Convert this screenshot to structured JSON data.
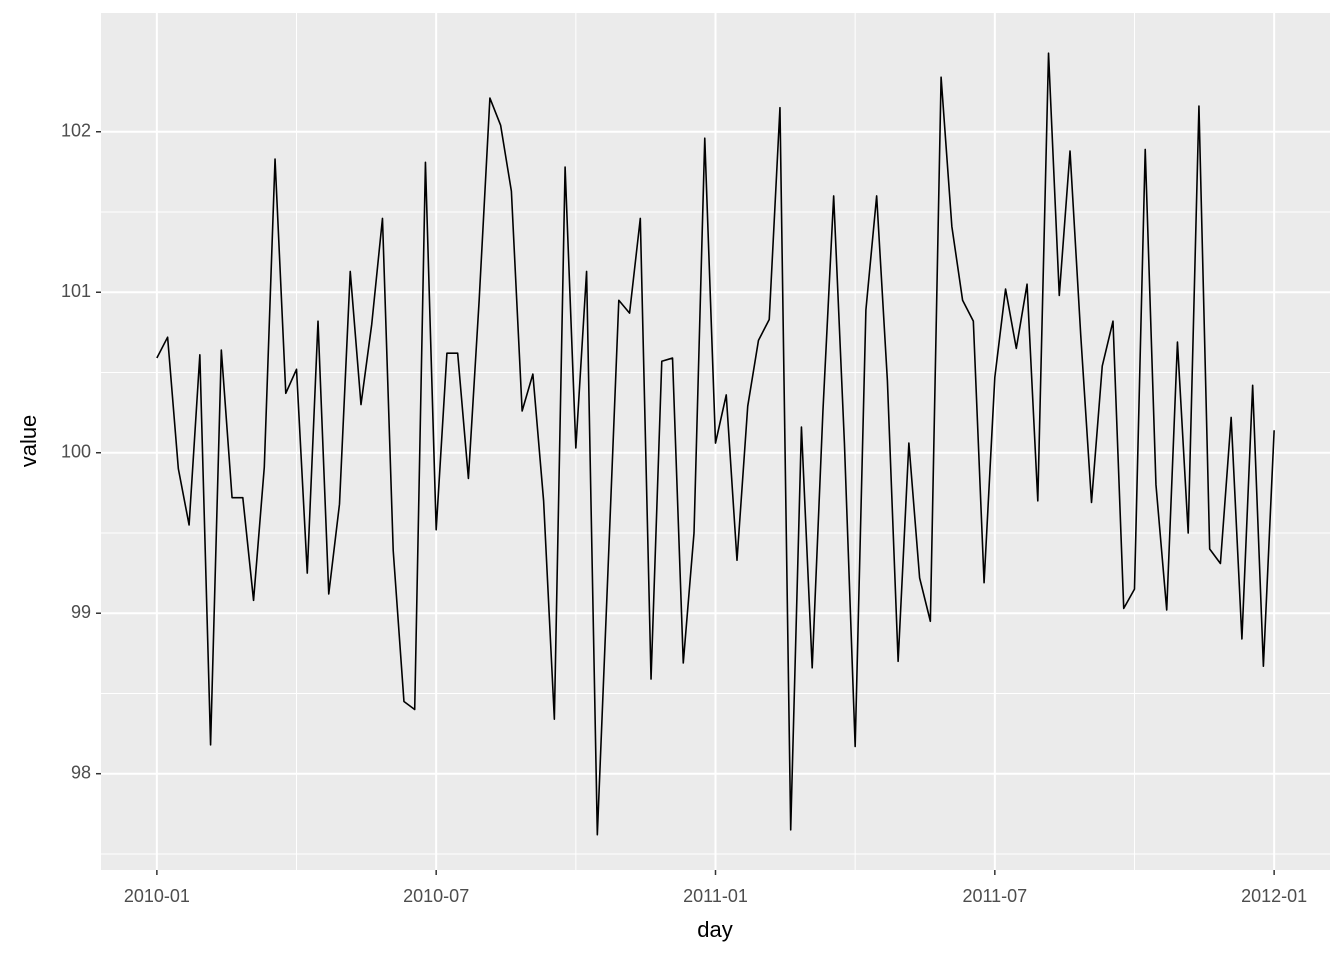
{
  "chart_data": {
    "type": "line",
    "x_label": "day",
    "y_label": "value",
    "color": "#000000",
    "values": [
      100.59,
      100.72,
      99.9,
      99.55,
      100.61,
      98.18,
      100.64,
      99.72,
      99.72,
      99.08,
      99.91,
      101.83,
      100.37,
      100.52,
      99.25,
      100.82,
      99.12,
      99.68,
      101.13,
      100.3,
      100.8,
      101.46,
      99.39,
      98.45,
      98.4,
      101.81,
      99.52,
      100.62,
      100.62,
      99.84,
      100.95,
      102.21,
      102.04,
      101.63,
      100.26,
      100.49,
      99.7,
      98.34,
      101.78,
      100.03,
      101.13,
      97.62,
      99.28,
      100.95,
      100.87,
      101.46,
      98.59,
      100.57,
      100.59,
      98.69,
      99.5,
      101.96,
      100.06,
      100.36,
      99.33,
      100.29,
      100.7,
      100.83,
      102.15,
      97.65,
      100.16,
      98.66,
      100.26,
      101.6,
      100.06,
      98.17,
      100.89,
      101.6,
      100.45,
      98.7,
      100.06,
      99.22,
      98.95,
      102.34,
      101.41,
      100.95,
      100.82,
      99.19,
      100.47,
      101.02,
      100.65,
      101.05,
      99.7,
      102.49,
      100.98,
      101.88,
      100.73,
      99.69,
      100.54,
      100.82,
      99.03,
      99.15,
      101.89,
      99.8,
      99.02,
      100.69,
      99.5,
      102.16,
      99.4,
      99.31,
      100.22,
      98.84,
      100.42,
      98.67,
      100.14
    ],
    "xlim": [
      "2010-01",
      "2012-01"
    ],
    "xticks": [
      "2010-01",
      "2010-07",
      "2011-01",
      "2011-07",
      "2012-01"
    ],
    "ylim": [
      97.4,
      102.74
    ],
    "yticks": [
      98,
      99,
      100,
      101,
      102
    ],
    "grid": true
  }
}
